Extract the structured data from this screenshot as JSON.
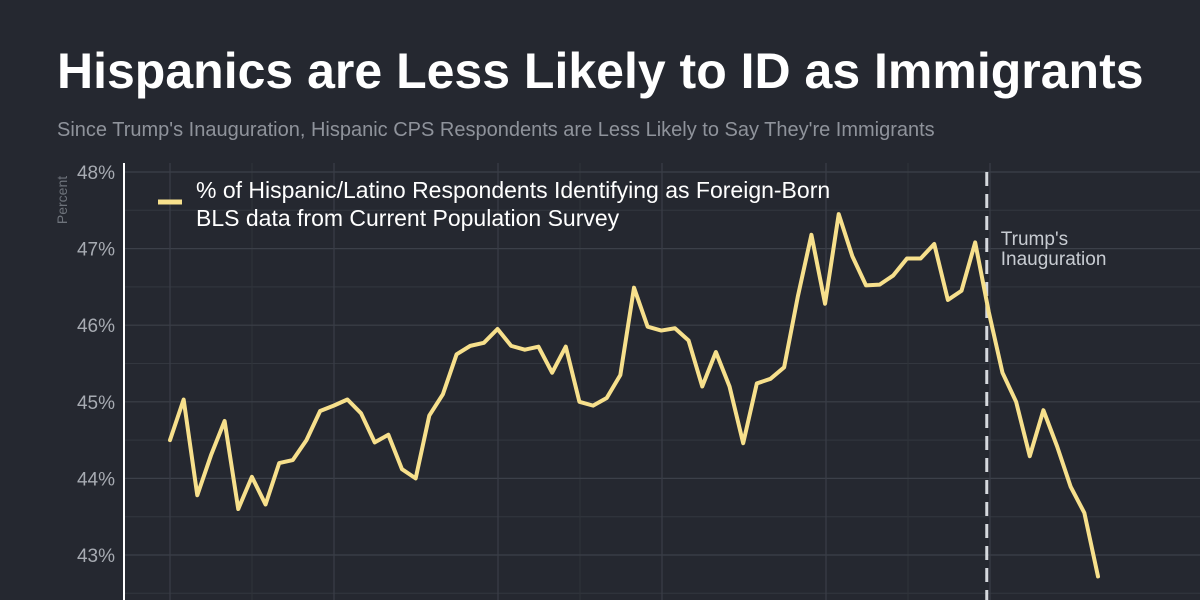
{
  "chart_data": {
    "type": "line",
    "title": "Hispanics are Less Likely to ID as Immigrants",
    "subtitle": "Since Trump's Inauguration, Hispanic CPS Respondents are Less Likely to Say They're Immigrants",
    "ylabel": "Percent",
    "ylim": [
      42.5,
      48
    ],
    "yticks": [
      43,
      44,
      45,
      46,
      47,
      48
    ],
    "ytick_labels": [
      "43%",
      "44%",
      "45%",
      "46%",
      "47%",
      "48%"
    ],
    "grid": true,
    "legend_placement": "top-left",
    "series": [
      {
        "name": "% of Hispanic/Latino Respondents Identifying as Foreign-Born",
        "name_line2": "BLS data from Current Population Survey",
        "color": "#f7e08c",
        "values": [
          44.5,
          45.03,
          43.78,
          44.3,
          44.75,
          43.6,
          44.02,
          43.66,
          44.2,
          44.24,
          44.5,
          44.88,
          44.95,
          45.03,
          44.85,
          44.47,
          44.57,
          44.12,
          44.0,
          44.82,
          45.1,
          45.62,
          45.73,
          45.77,
          45.95,
          45.73,
          45.68,
          45.72,
          45.38,
          45.72,
          45.0,
          44.95,
          45.05,
          45.35,
          46.49,
          45.98,
          45.93,
          45.96,
          45.8,
          45.2,
          45.65,
          45.2,
          44.46,
          45.24,
          45.3,
          45.45,
          46.37,
          47.18,
          46.28,
          47.45,
          46.9,
          46.52,
          46.53,
          46.65,
          46.87,
          46.87,
          47.06,
          46.33,
          46.45,
          47.08,
          46.17,
          45.38,
          45.0,
          44.29,
          44.89,
          44.42,
          43.89,
          43.55,
          42.72
        ]
      }
    ],
    "annotations": [
      {
        "text_line1": "Trump's",
        "text_line2": "Inauguration",
        "at_index": 59.85
      }
    ]
  }
}
